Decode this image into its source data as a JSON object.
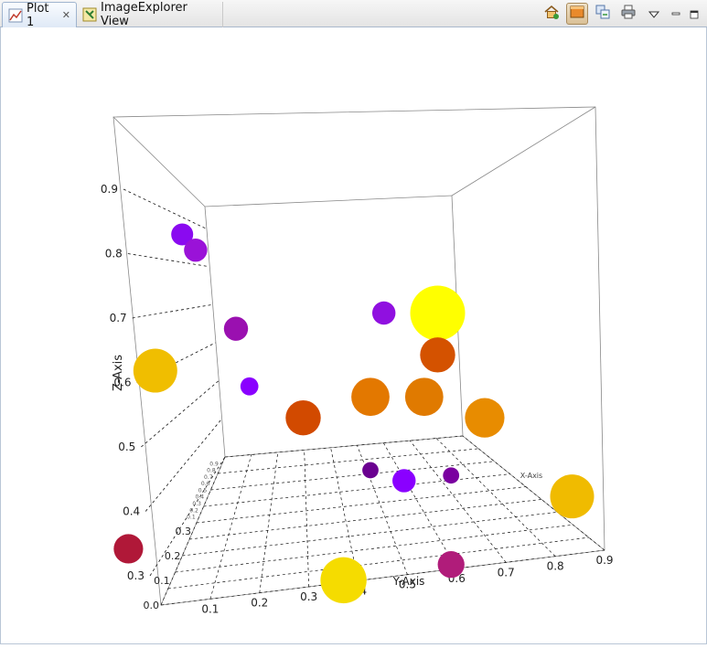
{
  "tabs": [
    {
      "label": "Plot 1",
      "icon": "line-chart-icon",
      "closable": true,
      "active": true
    },
    {
      "label": "ImageExplorer View",
      "icon": "image-explorer-icon",
      "closable": false,
      "active": false
    }
  ],
  "toolbar": {
    "buttons": [
      "home-icon",
      "panel-toggle-icon",
      "copy-icon",
      "print-icon",
      "view-menu-icon",
      "minimize-icon",
      "maximize-icon"
    ]
  },
  "chart_data": {
    "type": "scatter",
    "style": "3d-bubble",
    "xlabel": "X-Axis",
    "ylabel": "Y-Axis",
    "zlabel": "Z-Axis",
    "y_ticks": [
      "0.1",
      "0.2",
      "0.3",
      "0.4",
      "0.5",
      "0.6",
      "0.7",
      "0.8",
      "0.9"
    ],
    "z_ticks": [
      "0.3",
      "0.4",
      "0.5",
      "0.6",
      "0.7",
      "0.8",
      "0.9"
    ],
    "left_ticks": [
      "0.0",
      "0.1",
      "0.2",
      "0.3"
    ],
    "x_ticks": [
      "0.1",
      "0.2",
      "0.3",
      "0.4",
      "0.5",
      "0.6",
      "0.7",
      "0.8",
      "0.9"
    ],
    "grid": true,
    "color_scale": [
      "#8a00ff",
      "#b01c6e",
      "#d24a00",
      "#f0a000",
      "#ffff00"
    ],
    "points": [
      {
        "y": 0.12,
        "z": 0.93,
        "size": 0.25,
        "color": "#8a0af0"
      },
      {
        "y": 0.14,
        "z": 0.9,
        "size": 0.28,
        "color": "#9a12d8"
      },
      {
        "y": 0.42,
        "z": 0.78,
        "size": 0.28,
        "color": "#9010e0"
      },
      {
        "y": 0.5,
        "z": 0.78,
        "size": 1.0,
        "color": "#ffff00"
      },
      {
        "y": 0.2,
        "z": 0.75,
        "size": 0.3,
        "color": "#9a10b0"
      },
      {
        "y": 0.5,
        "z": 0.7,
        "size": 0.55,
        "color": "#d45200"
      },
      {
        "y": 0.08,
        "z": 0.67,
        "size": 0.75,
        "color": "#f0be00"
      },
      {
        "y": 0.22,
        "z": 0.64,
        "size": 0.16,
        "color": "#8a00ff"
      },
      {
        "y": 0.4,
        "z": 0.62,
        "size": 0.62,
        "color": "#e37800"
      },
      {
        "y": 0.48,
        "z": 0.62,
        "size": 0.62,
        "color": "#e07a00"
      },
      {
        "y": 0.57,
        "z": 0.58,
        "size": 0.65,
        "color": "#e88c00"
      },
      {
        "y": 0.3,
        "z": 0.58,
        "size": 0.55,
        "color": "#d24a00"
      },
      {
        "y": 0.4,
        "z": 0.48,
        "size": 0.12,
        "color": "#6a0090"
      },
      {
        "y": 0.52,
        "z": 0.47,
        "size": 0.12,
        "color": "#7a00a0"
      },
      {
        "y": 0.45,
        "z": 0.46,
        "size": 0.28,
        "color": "#8a00ff"
      },
      {
        "y": 0.7,
        "z": 0.43,
        "size": 0.75,
        "color": "#f0bb00"
      },
      {
        "y": 0.04,
        "z": 0.33,
        "size": 0.42,
        "color": "#b01838"
      },
      {
        "y": 0.52,
        "z": 0.3,
        "size": 0.36,
        "color": "#b01c7a"
      },
      {
        "y": 0.36,
        "z": 0.27,
        "size": 0.8,
        "color": "#f5dc00"
      }
    ]
  }
}
